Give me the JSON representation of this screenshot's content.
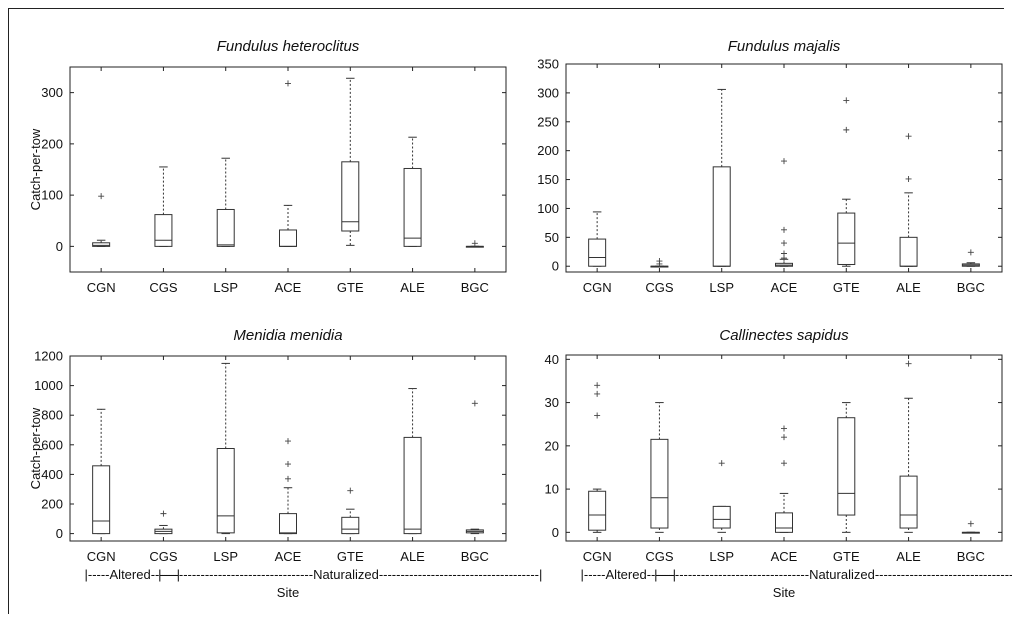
{
  "chart_data": [
    {
      "type": "box",
      "title": "Fundulus heteroclitus",
      "ylabel": "Catch-per-tow",
      "xlabel": "",
      "categories": [
        "CGN",
        "CGS",
        "LSP",
        "ACE",
        "GTE",
        "ALE",
        "BGC"
      ],
      "ylim": [
        -50,
        350
      ],
      "yticks": [
        0,
        100,
        200,
        300
      ],
      "boxes": [
        {
          "min": 0,
          "q1": 0,
          "median": 2,
          "q3": 7,
          "max": 12,
          "outliers": [
            98
          ]
        },
        {
          "min": 0,
          "q1": 0,
          "median": 12,
          "q3": 62,
          "max": 155,
          "outliers": []
        },
        {
          "min": 0,
          "q1": 0,
          "median": 3,
          "q3": 72,
          "max": 172,
          "outliers": []
        },
        {
          "min": 0,
          "q1": 0,
          "median": 0,
          "q3": 32,
          "max": 80,
          "outliers": [
            318
          ]
        },
        {
          "min": 2,
          "q1": 30,
          "median": 48,
          "q3": 165,
          "max": 328,
          "outliers": []
        },
        {
          "min": 0,
          "q1": 0,
          "median": 16,
          "q3": 152,
          "max": 213,
          "outliers": []
        },
        {
          "min": 0,
          "q1": 0,
          "median": 0,
          "q3": 0,
          "max": 0,
          "outliers": [
            6
          ]
        }
      ]
    },
    {
      "type": "box",
      "title": "Fundulus majalis",
      "ylabel": "",
      "xlabel": "",
      "categories": [
        "CGN",
        "CGS",
        "LSP",
        "ACE",
        "GTE",
        "ALE",
        "BGC"
      ],
      "ylim": [
        -10,
        350
      ],
      "yticks": [
        0,
        50,
        100,
        150,
        200,
        250,
        300,
        350
      ],
      "boxes": [
        {
          "min": 0,
          "q1": 0,
          "median": 15,
          "q3": 47,
          "max": 94,
          "outliers": []
        },
        {
          "min": 0,
          "q1": 0,
          "median": 0,
          "q3": 0,
          "max": 0,
          "outliers": [
            9,
            4
          ]
        },
        {
          "min": 0,
          "q1": 0,
          "median": 0,
          "q3": 172,
          "max": 306,
          "outliers": []
        },
        {
          "min": 0,
          "q1": 0,
          "median": 2,
          "q3": 5,
          "max": 12,
          "outliers": [
            182,
            63,
            40,
            22,
            14
          ]
        },
        {
          "min": 0,
          "q1": 3,
          "median": 40,
          "q3": 92,
          "max": 116,
          "outliers": [
            287,
            236
          ]
        },
        {
          "min": 0,
          "q1": 0,
          "median": 0,
          "q3": 50,
          "max": 127,
          "outliers": [
            225,
            151
          ]
        },
        {
          "min": 0,
          "q1": 0,
          "median": 2,
          "q3": 4,
          "max": 6,
          "outliers": [
            24
          ]
        }
      ]
    },
    {
      "type": "box",
      "title": "Menidia menidia",
      "ylabel": "Catch-per-tow",
      "xlabel": "Site",
      "categories": [
        "CGN",
        "CGS",
        "LSP",
        "ACE",
        "GTE",
        "ALE",
        "BGC"
      ],
      "ylim": [
        -50,
        1200
      ],
      "yticks": [
        0,
        200,
        400,
        600,
        800,
        1000,
        1200
      ],
      "groups": [
        {
          "label": "|-----Altered------|",
          "from": 0,
          "to": 1
        },
        {
          "label": "|-----------------------------------Naturalized-------------------------------------|",
          "from": 2,
          "to": 6
        }
      ],
      "boxes": [
        {
          "min": 0,
          "q1": 0,
          "median": 85,
          "q3": 458,
          "max": 840,
          "outliers": []
        },
        {
          "min": 0,
          "q1": 0,
          "median": 15,
          "q3": 30,
          "max": 55,
          "outliers": [
            135
          ]
        },
        {
          "min": 0,
          "q1": 5,
          "median": 120,
          "q3": 575,
          "max": 1150,
          "outliers": []
        },
        {
          "min": 0,
          "q1": 0,
          "median": 5,
          "q3": 135,
          "max": 310,
          "outliers": [
            625,
            470,
            370
          ]
        },
        {
          "min": 0,
          "q1": 0,
          "median": 30,
          "q3": 110,
          "max": 165,
          "outliers": [
            290
          ]
        },
        {
          "min": 0,
          "q1": 0,
          "median": 30,
          "q3": 650,
          "max": 980,
          "outliers": []
        },
        {
          "min": 0,
          "q1": 5,
          "median": 15,
          "q3": 25,
          "max": 30,
          "outliers": [
            880
          ]
        }
      ]
    },
    {
      "type": "box",
      "title": "Callinectes sapidus",
      "ylabel": "",
      "xlabel": "Site",
      "categories": [
        "CGN",
        "CGS",
        "LSP",
        "ACE",
        "GTE",
        "ALE",
        "BGC"
      ],
      "ylim": [
        -2,
        41
      ],
      "yticks": [
        0,
        10,
        20,
        30,
        40
      ],
      "groups": [
        {
          "label": "|-----Altered------|",
          "from": 0,
          "to": 1
        },
        {
          "label": "|-----------------------------------Naturalized-------------------------------------|",
          "from": 2,
          "to": 6
        }
      ],
      "boxes": [
        {
          "min": 0,
          "q1": 0.5,
          "median": 4,
          "q3": 9.5,
          "max": 10,
          "outliers": [
            34,
            32,
            27
          ]
        },
        {
          "min": 0,
          "q1": 1,
          "median": 8,
          "q3": 21.5,
          "max": 30,
          "outliers": []
        },
        {
          "min": 0,
          "q1": 1,
          "median": 3,
          "q3": 6,
          "max": 6,
          "outliers": [
            16
          ]
        },
        {
          "min": 0,
          "q1": 0,
          "median": 1,
          "q3": 4.5,
          "max": 9,
          "outliers": [
            24,
            22,
            16
          ]
        },
        {
          "min": 0,
          "q1": 4,
          "median": 9,
          "q3": 26.5,
          "max": 30,
          "outliers": []
        },
        {
          "min": 0,
          "q1": 1,
          "median": 4,
          "q3": 13,
          "max": 31,
          "outliers": [
            39
          ]
        },
        {
          "min": 0,
          "q1": 0,
          "median": 0,
          "q3": 0,
          "max": 0,
          "outliers": [
            2
          ]
        }
      ]
    }
  ]
}
